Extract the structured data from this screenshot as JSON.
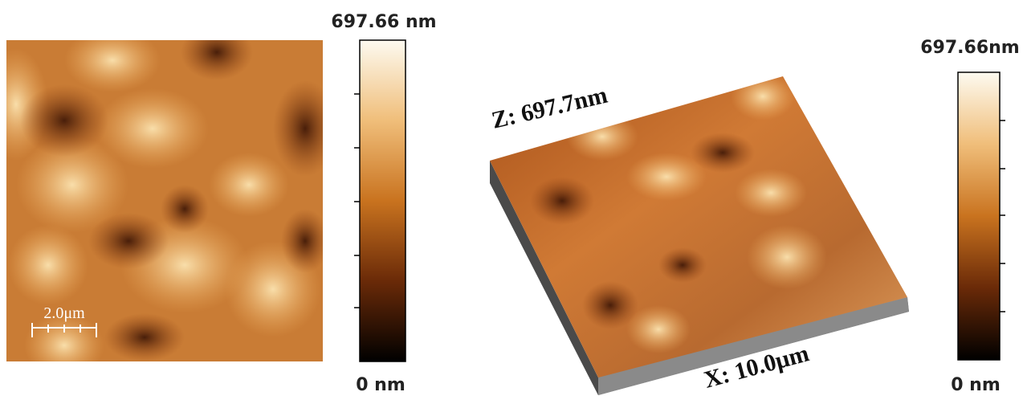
{
  "left_panel": {
    "scale_bar": "2.0μm",
    "colorbar": {
      "max_label": "697.66 nm",
      "min_label": "0 nm"
    }
  },
  "right_panel": {
    "z_label": "Z: 697.7nm",
    "x_label": "X: 10.0μm",
    "colorbar": {
      "max_label": "697.66nm",
      "min_label": "0 nm"
    }
  }
}
